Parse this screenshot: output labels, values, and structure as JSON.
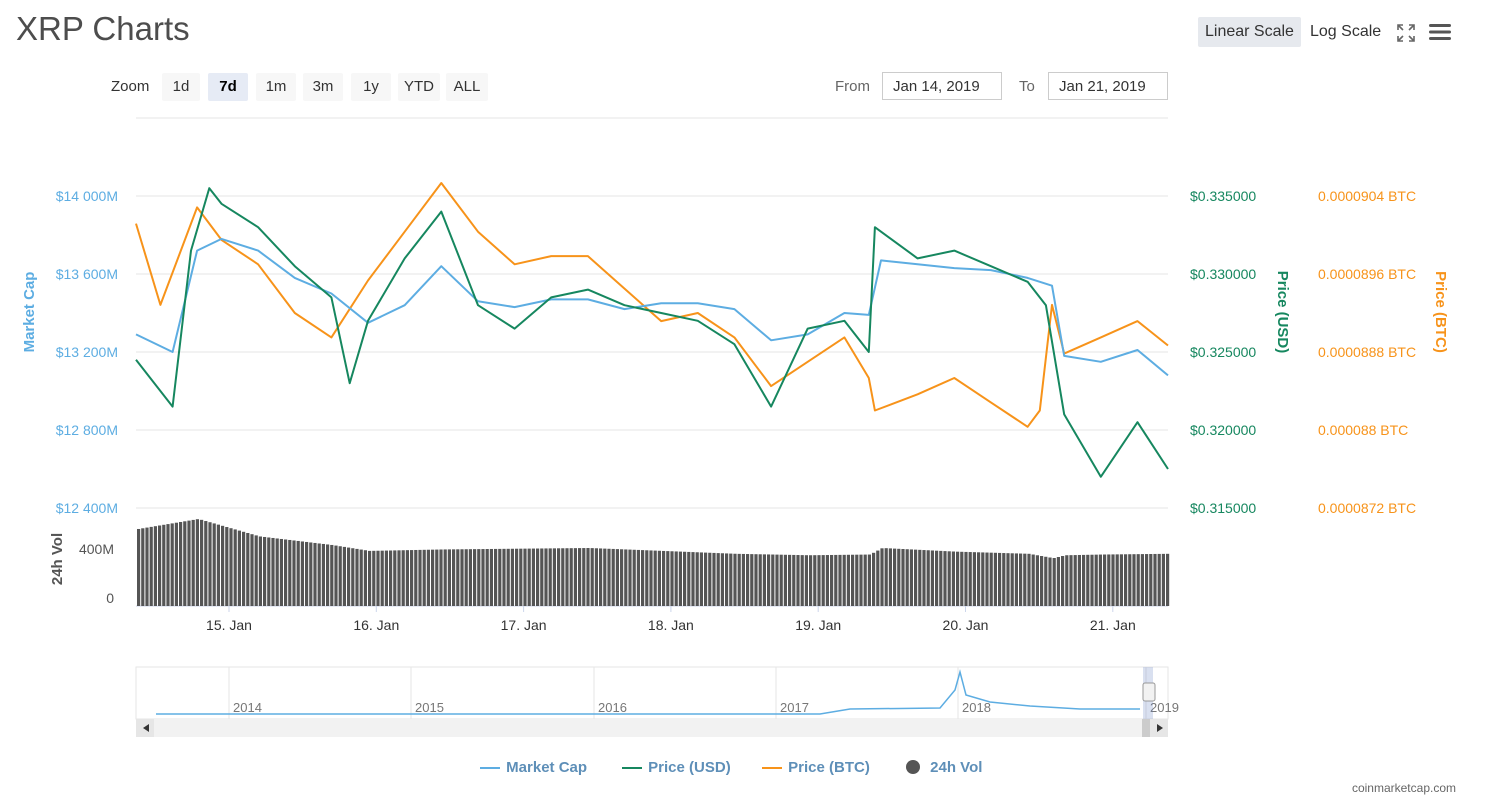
{
  "title": "XRP Charts",
  "scale_buttons": {
    "linear": "Linear Scale",
    "log": "Log Scale"
  },
  "icons": {
    "fullscreen": "fullscreen-icon",
    "menu": "hamburger-menu-icon"
  },
  "zoom": {
    "label": "Zoom",
    "options": [
      "1d",
      "7d",
      "1m",
      "3m",
      "1y",
      "YTD",
      "ALL"
    ],
    "active": "7d"
  },
  "range": {
    "from_label": "From",
    "from_value": "Jan 14, 2019",
    "to_label": "To",
    "to_value": "Jan 21, 2019"
  },
  "colors": {
    "market_cap": "#5dade2",
    "price_usd": "#16875f",
    "price_btc": "#f7931a",
    "vol": "#555555",
    "grid": "#e6e6e6"
  },
  "chart_data": {
    "type": "line",
    "x_range": [
      "2019-01-14T10:00",
      "2019-01-21T11:00"
    ],
    "x_ticks": [
      "15. Jan",
      "16. Jan",
      "17. Jan",
      "18. Jan",
      "19. Jan",
      "20. Jan",
      "21. Jan"
    ],
    "axes": {
      "market_cap": {
        "label": "Market Cap",
        "range": [
          12400,
          14400
        ],
        "ticks": [
          "$14 000M",
          "$13 600M",
          "$13 200M",
          "$12 800M",
          "$12 400M"
        ]
      },
      "price_usd": {
        "label": "Price (USD)",
        "range": [
          0.315,
          0.34
        ],
        "ticks": [
          "$0.335000",
          "$0.330000",
          "$0.325000",
          "$0.320000",
          "$0.315000"
        ]
      },
      "price_btc": {
        "label": "Price (BTC)",
        "range": [
          8.72e-05,
          9.2e-05
        ],
        "ticks": [
          "0.0000904 BTC",
          "0.0000896 BTC",
          "0.0000888 BTC",
          "0.000088 BTC",
          "0.0000872 BTC"
        ]
      },
      "vol": {
        "label": "24h Vol",
        "ticks": [
          "400M",
          "0"
        ]
      }
    },
    "series": [
      {
        "name": "Market Cap",
        "unit": "M USD",
        "x": [
          "2019-01-14T10:00",
          "2019-01-14T16:00",
          "2019-01-14T20:00",
          "2019-01-15T00:00",
          "2019-01-15T06:00",
          "2019-01-15T12:00",
          "2019-01-15T18:00",
          "2019-01-16T00:00",
          "2019-01-16T06:00",
          "2019-01-16T12:00",
          "2019-01-16T18:00",
          "2019-01-17T00:00",
          "2019-01-17T06:00",
          "2019-01-17T12:00",
          "2019-01-17T18:00",
          "2019-01-18T00:00",
          "2019-01-18T06:00",
          "2019-01-18T12:00",
          "2019-01-18T18:00",
          "2019-01-19T00:00",
          "2019-01-19T06:00",
          "2019-01-19T10:00",
          "2019-01-19T12:00",
          "2019-01-19T18:00",
          "2019-01-20T00:00",
          "2019-01-20T06:00",
          "2019-01-20T12:00",
          "2019-01-20T16:00",
          "2019-01-20T18:00",
          "2019-01-21T00:00",
          "2019-01-21T06:00",
          "2019-01-21T11:00"
        ],
        "values": [
          13290,
          13200,
          13720,
          13780,
          13720,
          13580,
          13500,
          13350,
          13440,
          13640,
          13460,
          13430,
          13470,
          13470,
          13420,
          13450,
          13450,
          13420,
          13260,
          13290,
          13400,
          13390,
          13670,
          13650,
          13630,
          13620,
          13580,
          13540,
          13180,
          13150,
          13210,
          13080
        ]
      },
      {
        "name": "Price (USD)",
        "unit": "USD",
        "x": [
          "2019-01-14T10:00",
          "2019-01-14T16:00",
          "2019-01-14T19:00",
          "2019-01-14T22:00",
          "2019-01-15T00:00",
          "2019-01-15T06:00",
          "2019-01-15T12:00",
          "2019-01-15T18:00",
          "2019-01-15T21:00",
          "2019-01-16T00:00",
          "2019-01-16T06:00",
          "2019-01-16T12:00",
          "2019-01-16T18:00",
          "2019-01-17T00:00",
          "2019-01-17T06:00",
          "2019-01-17T12:00",
          "2019-01-17T18:00",
          "2019-01-18T00:00",
          "2019-01-18T06:00",
          "2019-01-18T12:00",
          "2019-01-18T18:00",
          "2019-01-19T00:00",
          "2019-01-19T06:00",
          "2019-01-19T10:00",
          "2019-01-19T11:00",
          "2019-01-19T18:00",
          "2019-01-20T00:00",
          "2019-01-20T06:00",
          "2019-01-20T12:00",
          "2019-01-20T15:00",
          "2019-01-20T18:00",
          "2019-01-21T00:00",
          "2019-01-21T06:00",
          "2019-01-21T11:00"
        ],
        "values": [
          0.3245,
          0.3215,
          0.3315,
          0.3355,
          0.3345,
          0.333,
          0.3305,
          0.3285,
          0.323,
          0.327,
          0.331,
          0.334,
          0.328,
          0.3265,
          0.3285,
          0.329,
          0.328,
          0.3275,
          0.327,
          0.3255,
          0.3215,
          0.3265,
          0.327,
          0.325,
          0.333,
          0.331,
          0.3315,
          0.3305,
          0.3295,
          0.328,
          0.321,
          0.317,
          0.3205,
          0.3175
        ]
      },
      {
        "name": "Price (BTC)",
        "unit": "BTC",
        "x": [
          "2019-01-14T10:00",
          "2019-01-14T14:00",
          "2019-01-14T20:00",
          "2019-01-15T00:00",
          "2019-01-15T06:00",
          "2019-01-15T12:00",
          "2019-01-15T18:00",
          "2019-01-16T00:00",
          "2019-01-16T06:00",
          "2019-01-16T12:00",
          "2019-01-16T18:00",
          "2019-01-17T00:00",
          "2019-01-17T06:00",
          "2019-01-17T12:00",
          "2019-01-17T18:00",
          "2019-01-18T00:00",
          "2019-01-18T06:00",
          "2019-01-18T12:00",
          "2019-01-18T18:00",
          "2019-01-19T00:00",
          "2019-01-19T06:00",
          "2019-01-19T10:00",
          "2019-01-19T11:00",
          "2019-01-19T18:00",
          "2019-01-20T00:00",
          "2019-01-20T06:00",
          "2019-01-20T12:00",
          "2019-01-20T14:00",
          "2019-01-20T16:00",
          "2019-01-20T18:00",
          "2019-01-21T00:00",
          "2019-01-21T06:00",
          "2019-01-21T11:00"
        ],
        "values": [
          9.07e-05,
          8.97e-05,
          9.09e-05,
          9.05e-05,
          9.02e-05,
          8.96e-05,
          8.93e-05,
          9e-05,
          9.06e-05,
          9.12e-05,
          9.06e-05,
          9.02e-05,
          9.03e-05,
          9.03e-05,
          8.99e-05,
          8.95e-05,
          8.96e-05,
          8.93e-05,
          8.87e-05,
          8.9e-05,
          8.93e-05,
          8.88e-05,
          8.84e-05,
          8.86e-05,
          8.88e-05,
          8.85e-05,
          8.82e-05,
          8.84e-05,
          8.97e-05,
          8.91e-05,
          8.93e-05,
          8.95e-05,
          8.92e-05
        ]
      },
      {
        "name": "24h Vol",
        "unit": "M USD",
        "x": [
          "2019-01-14T10:00",
          "2019-01-14T20:00",
          "2019-01-15T06:00",
          "2019-01-15T18:00",
          "2019-01-16T00:00",
          "2019-01-16T12:00",
          "2019-01-17T00:00",
          "2019-01-17T12:00",
          "2019-01-18T00:00",
          "2019-01-18T12:00",
          "2019-01-19T00:00",
          "2019-01-19T10:00",
          "2019-01-19T12:00",
          "2019-01-20T00:00",
          "2019-01-20T12:00",
          "2019-01-20T16:00",
          "2019-01-20T18:00",
          "2019-01-21T00:00",
          "2019-01-21T11:00"
        ],
        "values": [
          530,
          600,
          480,
          420,
          380,
          390,
          395,
          400,
          380,
          360,
          350,
          355,
          400,
          375,
          360,
          330,
          350,
          355,
          360
        ]
      }
    ],
    "navigator": {
      "labels": [
        "2014",
        "2015",
        "2016",
        "2017",
        "2018",
        "2019"
      ]
    },
    "legend": [
      "Market Cap",
      "Price (USD)",
      "Price (BTC)",
      "24h Vol"
    ],
    "legend_position": "bottom",
    "grid": true
  },
  "credit": "coinmarketcap.com"
}
